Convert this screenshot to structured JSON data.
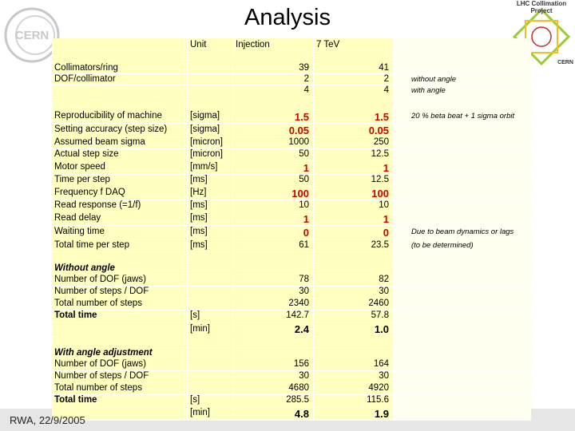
{
  "header": {
    "title": "Analysis",
    "left_logo": "CERN",
    "right_logo": "LHC Collimation Project",
    "right_logo_sub": "CERN"
  },
  "footer": "RWA, 22/9/2005",
  "table": {
    "columns": [
      "Unit",
      "Injection",
      "7 TeV"
    ],
    "rows": [
      {
        "label": "Collimators/ring",
        "injection": "39",
        "tev": "41"
      },
      {
        "label": "DOF/collimator",
        "injection": "2",
        "tev": "2",
        "note": "without angle"
      },
      {
        "injection": "4",
        "tev": "4",
        "note": "with angle"
      },
      {
        "label": "Reproducibility of machine",
        "unit": "[sigma]",
        "injection": "1.5",
        "tev": "1.5",
        "emphasis": "red",
        "note": "20 % beta beat + 1 sigma orbit"
      },
      {
        "label": "Setting accuracy (step size)",
        "unit": "[sigma]",
        "injection": "0.05",
        "tev": "0.05",
        "emphasis": "red"
      },
      {
        "label": "Assumed beam sigma",
        "unit": "[micron]",
        "injection": "1000",
        "tev": "250"
      },
      {
        "label": "Actual step size",
        "unit": "[micron]",
        "injection": "50",
        "tev": "12.5"
      },
      {
        "label": "Motor speed",
        "unit": "[mm/s]",
        "injection": "1",
        "tev": "1",
        "emphasis": "red"
      },
      {
        "label": "Time per step",
        "unit": "[ms]",
        "injection": "50",
        "tev": "12.5"
      },
      {
        "label": "Frequency f DAQ",
        "unit": "[Hz]",
        "injection": "100",
        "tev": "100",
        "emphasis": "red"
      },
      {
        "label": "Read response (=1/f)",
        "unit": "[ms]",
        "injection": "10",
        "tev": "10"
      },
      {
        "label": "Read delay",
        "unit": "[ms]",
        "injection": "1",
        "tev": "1",
        "emphasis": "red"
      },
      {
        "label": "Waiting time",
        "unit": "[ms]",
        "injection": "0",
        "tev": "0",
        "emphasis": "red",
        "note": "Due to beam dynamics or lags"
      },
      {
        "label": "Total time per step",
        "unit": "[ms]",
        "injection": "61",
        "tev": "23.5",
        "note": "(to be determined)"
      },
      {
        "label": "Without angle",
        "emphasis": "heading"
      },
      {
        "label": "Number of DOF (jaws)",
        "injection": "78",
        "tev": "82"
      },
      {
        "label": "Number of steps / DOF",
        "injection": "30",
        "tev": "30"
      },
      {
        "label": "Total number of steps",
        "injection": "2340",
        "tev": "2460"
      },
      {
        "label": "Total time",
        "unit": "[s]",
        "injection": "142.7",
        "tev": "57.8",
        "emphasis": "total"
      },
      {
        "unit": "[min]",
        "injection": "2.4",
        "tev": "1.0",
        "emphasis": "bold"
      },
      {
        "label": "With angle adjustment",
        "emphasis": "heading"
      },
      {
        "label": "Number of DOF (jaws)",
        "injection": "156",
        "tev": "164"
      },
      {
        "label": "Number of steps / DOF",
        "injection": "30",
        "tev": "30"
      },
      {
        "label": "Total number of steps",
        "injection": "4680",
        "tev": "4920"
      },
      {
        "label": "Total time",
        "unit": "[s]",
        "injection": "285.5",
        "tev": "115.6",
        "emphasis": "total"
      },
      {
        "unit": "[min]",
        "injection": "4.8",
        "tev": "1.9",
        "emphasis": "bold"
      }
    ]
  }
}
